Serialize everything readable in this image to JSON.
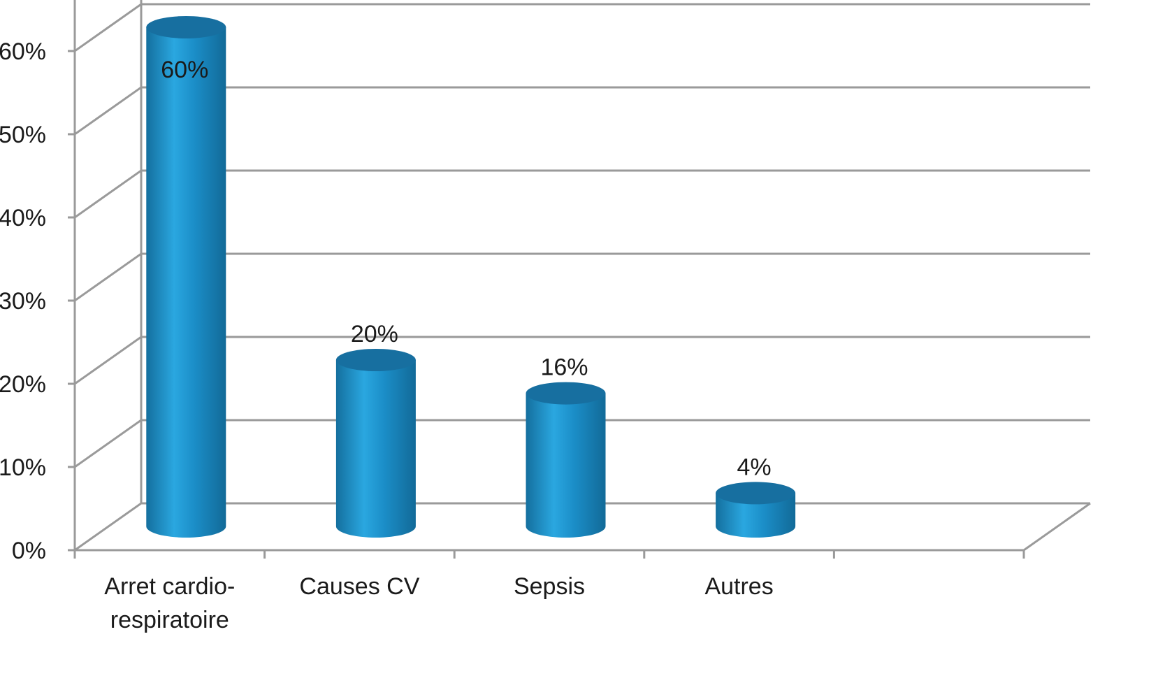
{
  "chart_data": {
    "type": "bar",
    "style": "3d-cylinder",
    "categories": [
      "Arret cardio-respiratoire",
      "Causes CV",
      "Sepsis",
      "Autres"
    ],
    "category_lines": [
      [
        "Arret cardio-",
        "respiratoire"
      ],
      [
        "Causes CV"
      ],
      [
        "Sepsis"
      ],
      [
        "Autres"
      ]
    ],
    "values": [
      60,
      20,
      16,
      4
    ],
    "value_labels": [
      "60%",
      "20%",
      "16%",
      "4%"
    ],
    "y_ticks": [
      0,
      10,
      20,
      30,
      40,
      50,
      60
    ],
    "y_tick_labels": [
      "0%",
      "10%",
      "20%",
      "30%",
      "40%",
      "50%",
      "60%"
    ],
    "ylim": [
      0,
      60
    ],
    "title": "",
    "xlabel": "",
    "ylabel": "",
    "grid": true,
    "legend": false,
    "colors": {
      "bar_body": "#1b8ec8",
      "bar_light": "#2aa7e0",
      "bar_dark": "#146f9e",
      "bar_top": "#176fa0",
      "grid": "#9a9a9a",
      "text": "#1a1a1a"
    }
  }
}
